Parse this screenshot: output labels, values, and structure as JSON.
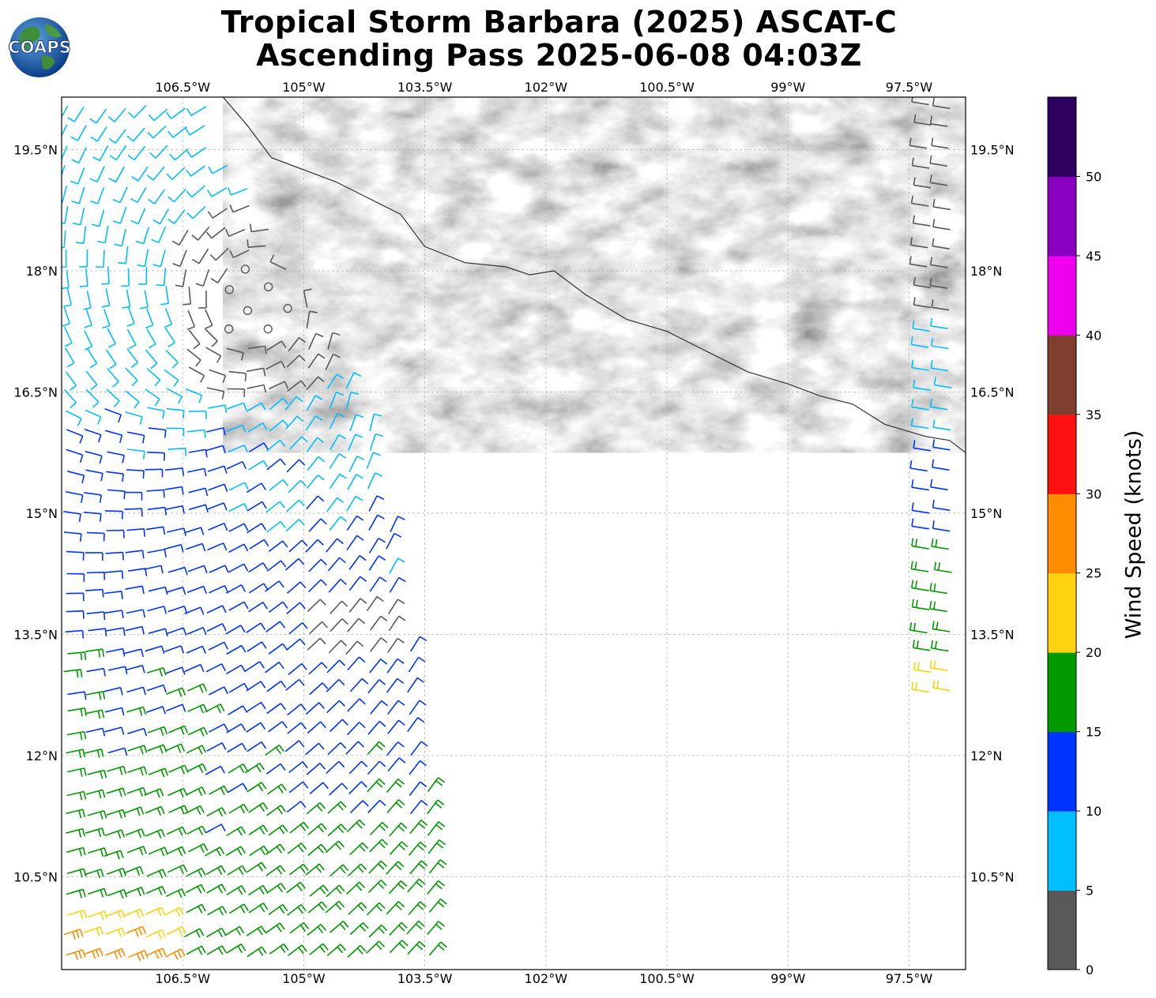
{
  "title": {
    "line1": "Tropical Storm Barbara (2025) ASCAT-C",
    "line2": "Ascending Pass 2025-06-08 04:03Z"
  },
  "logo": {
    "text": "COAPS",
    "icon": "globe-logo-icon"
  },
  "map": {
    "lon_range": [
      -108,
      -96.8
    ],
    "lat_range": [
      9.35,
      20.15
    ],
    "lon_ticks": [
      {
        "value": -106.5,
        "label": "106.5°W"
      },
      {
        "value": -105,
        "label": "105°W"
      },
      {
        "value": -103.5,
        "label": "103.5°W"
      },
      {
        "value": -102,
        "label": "102°W"
      },
      {
        "value": -100.5,
        "label": "100.5°W"
      },
      {
        "value": -99,
        "label": "99°W"
      },
      {
        "value": -97.5,
        "label": "97.5°W"
      }
    ],
    "lat_ticks": [
      {
        "value": 19.5,
        "label": "19.5°N"
      },
      {
        "value": 18,
        "label": "18°N"
      },
      {
        "value": 16.5,
        "label": "16.5°N"
      },
      {
        "value": 15,
        "label": "15°N"
      },
      {
        "value": 13.5,
        "label": "13.5°N"
      },
      {
        "value": 12,
        "label": "12°N"
      },
      {
        "value": 10.5,
        "label": "10.5°N"
      }
    ],
    "grid": true,
    "land_shading": "grayscale terrain elevation",
    "coastline": [
      [
        -106.0,
        20.15
      ],
      [
        -105.7,
        19.8
      ],
      [
        -105.4,
        19.4
      ],
      [
        -105.0,
        19.25
      ],
      [
        -104.6,
        19.1
      ],
      [
        -104.2,
        18.9
      ],
      [
        -103.8,
        18.7
      ],
      [
        -103.5,
        18.3
      ],
      [
        -103.0,
        18.1
      ],
      [
        -102.5,
        18.05
      ],
      [
        -102.2,
        17.95
      ],
      [
        -101.9,
        18.0
      ],
      [
        -101.5,
        17.7
      ],
      [
        -101.0,
        17.4
      ],
      [
        -100.5,
        17.25
      ],
      [
        -100.0,
        17.0
      ],
      [
        -99.5,
        16.75
      ],
      [
        -99.0,
        16.6
      ],
      [
        -98.6,
        16.45
      ],
      [
        -98.2,
        16.35
      ],
      [
        -97.8,
        16.1
      ],
      [
        -97.3,
        15.95
      ],
      [
        -97.0,
        15.9
      ],
      [
        -96.8,
        15.75
      ]
    ],
    "wind_speed_unit": "knots"
  },
  "colorbar": {
    "title": "Wind Speed (knots)",
    "ticks": [
      "0",
      "5",
      "10",
      "15",
      "20",
      "25",
      "30",
      "35",
      "40",
      "45",
      "50"
    ],
    "colors": [
      "#595959",
      "#00bfff",
      "#0033ff",
      "#009900",
      "#ffd20f",
      "#ff8c00",
      "#ff1010",
      "#7f3f2f",
      "#ee00ee",
      "#8a00c0",
      "#2e0060"
    ]
  },
  "swaths": [
    {
      "name": "west",
      "lon_min": -108,
      "lon_max": -103.2,
      "lat_min": 9.35,
      "lat_max": 20.15
    },
    {
      "name": "east",
      "lon_min": -97.3,
      "lon_max": -96.8,
      "lat_min": 12.6,
      "lat_max": 20.15
    }
  ],
  "storm_center": {
    "lon": -105.6,
    "lat": 17.6
  }
}
